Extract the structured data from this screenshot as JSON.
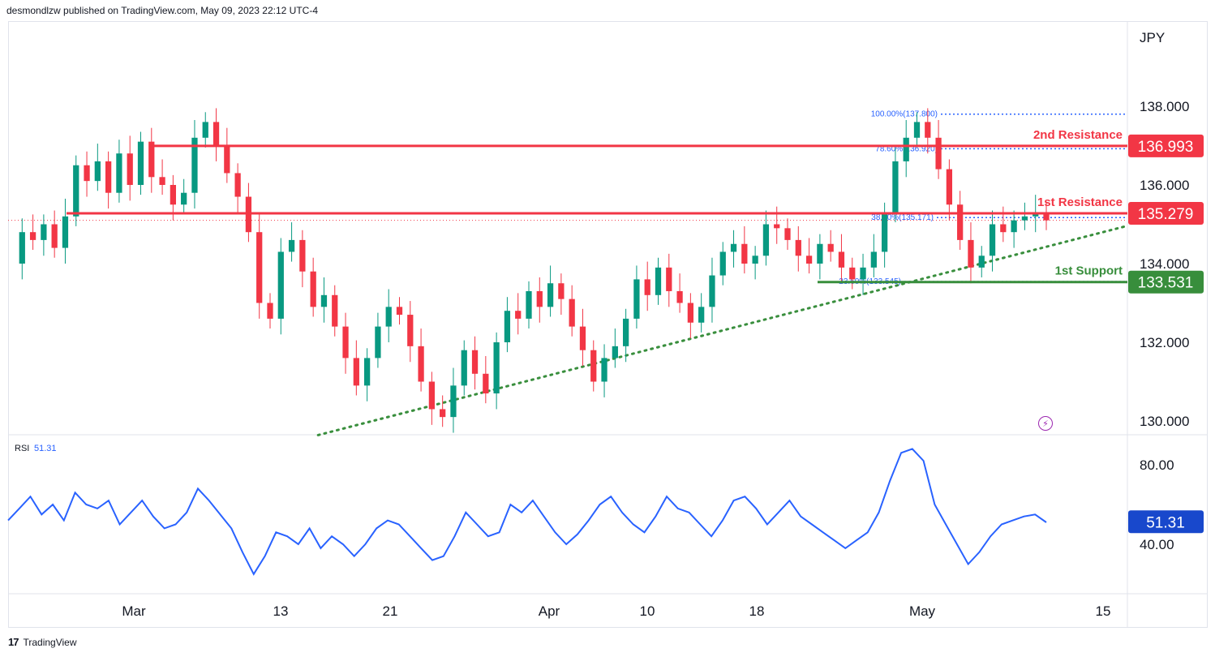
{
  "header": {
    "publisher": "desmondlzw published on TradingView.com, May 09, 2023 22:12 UTC-4"
  },
  "footer": {
    "brand": "TradingView",
    "logo": "17"
  },
  "chart_data": {
    "type": "candlestick",
    "currency_label": "JPY",
    "y_ticks": [
      "138.000",
      "136.000",
      "134.000",
      "132.000",
      "130.000"
    ],
    "ylim": [
      129.6,
      139.8
    ],
    "x_ticks": [
      "Mar",
      "13",
      "21",
      "Apr",
      "10",
      "18",
      "May",
      "15"
    ],
    "price_path": [
      134.0,
      134.8,
      134.6,
      135.0,
      134.4,
      135.2,
      136.5,
      136.1,
      136.6,
      135.8,
      136.8,
      136.0,
      137.1,
      136.2,
      136.0,
      135.5,
      135.8,
      137.2,
      137.6,
      137.0,
      136.3,
      135.7,
      134.8,
      133.0,
      132.6,
      134.3,
      134.6,
      133.8,
      132.9,
      133.2,
      132.4,
      131.6,
      130.9,
      131.6,
      132.4,
      132.9,
      132.7,
      131.9,
      131.0,
      130.3,
      130.1,
      130.9,
      131.8,
      131.2,
      130.7,
      132.0,
      132.8,
      132.6,
      133.3,
      132.9,
      133.5,
      133.1,
      132.4,
      131.8,
      131.0,
      131.6,
      131.9,
      132.6,
      133.6,
      133.2,
      133.9,
      133.3,
      133.0,
      132.5,
      132.9,
      133.7,
      134.3,
      134.5,
      134.0,
      134.2,
      135.0,
      134.9,
      134.6,
      134.2,
      134.0,
      134.5,
      134.3,
      133.9,
      133.6,
      133.9,
      134.3,
      135.3,
      136.6,
      137.2,
      137.6,
      137.2,
      136.4,
      135.5,
      134.6,
      133.9,
      134.2,
      135.0,
      134.8,
      135.1,
      135.2,
      135.3,
      135.1
    ],
    "levels": [
      {
        "label": "2nd Resistance",
        "value": 136.993,
        "value_text": "136.993",
        "color": "#f23645"
      },
      {
        "label": "1st Resistance",
        "value": 135.279,
        "value_text": "135.279",
        "color": "#f23645"
      },
      {
        "label": "1st Support",
        "value": 133.531,
        "value_text": "133.531",
        "color": "#388e3c"
      }
    ],
    "fib_levels": [
      {
        "label": "100.00%(137.800)",
        "value": 137.8
      },
      {
        "label": "78.60%(136.920)",
        "value": 136.92
      },
      {
        "label": "38.20%(135.171)",
        "value": 135.171
      },
      {
        "label": "23.60%(133.545)",
        "value": 133.545
      }
    ],
    "trendline": {
      "start": {
        "date_index": 28,
        "price": 129.6
      },
      "end": {
        "date_index": 96,
        "price": 134.95
      },
      "color": "#388e3c"
    },
    "rsi": {
      "label": "RSI",
      "value_text": "51.31",
      "value": 51.31,
      "y_ticks": [
        "80.00",
        "40.00"
      ],
      "ylim": [
        15,
        95
      ],
      "series": [
        52,
        58,
        64,
        55,
        60,
        52,
        66,
        60,
        58,
        62,
        50,
        56,
        62,
        54,
        48,
        50,
        56,
        68,
        62,
        55,
        48,
        36,
        25,
        34,
        46,
        44,
        40,
        48,
        38,
        44,
        40,
        34,
        40,
        48,
        52,
        50,
        44,
        38,
        32,
        34,
        44,
        56,
        50,
        44,
        46,
        60,
        56,
        62,
        54,
        46,
        40,
        45,
        52,
        60,
        64,
        56,
        50,
        46,
        54,
        64,
        58,
        56,
        50,
        44,
        52,
        62,
        64,
        58,
        50,
        56,
        62,
        54,
        50,
        46,
        42,
        38,
        42,
        46,
        56,
        72,
        86,
        88,
        82,
        60,
        50,
        40,
        30,
        36,
        44,
        50,
        52,
        54,
        55,
        51
      ],
      "color": "#2962ff",
      "badge_color": "#1848cc"
    },
    "grid": false,
    "candle_up_color": "#089981",
    "candle_down_color": "#f23645"
  }
}
